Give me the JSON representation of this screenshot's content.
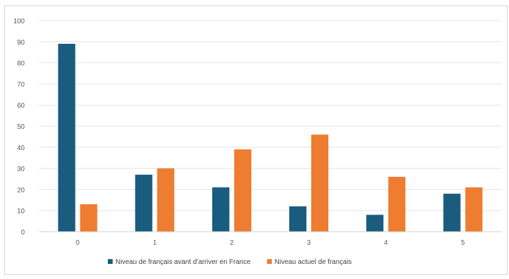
{
  "chart_data": {
    "type": "bar",
    "title": "",
    "xlabel": "",
    "ylabel": "",
    "categories": [
      "0",
      "1",
      "2",
      "3",
      "4",
      "5"
    ],
    "ylim": [
      0,
      100
    ],
    "yticks": [
      "0",
      "10",
      "20",
      "30",
      "40",
      "50",
      "60",
      "70",
      "80",
      "90",
      "100"
    ],
    "grid": true,
    "legend_position": "bottom",
    "series": [
      {
        "name": "Niveau de français avant d’arriver en France",
        "color": "#1a5c7e",
        "values": [
          89,
          27,
          21,
          12,
          8,
          18
        ]
      },
      {
        "name": "Niveau actuel de français",
        "color": "#ee7d31",
        "values": [
          13,
          30,
          39,
          46,
          26,
          21
        ]
      }
    ]
  }
}
